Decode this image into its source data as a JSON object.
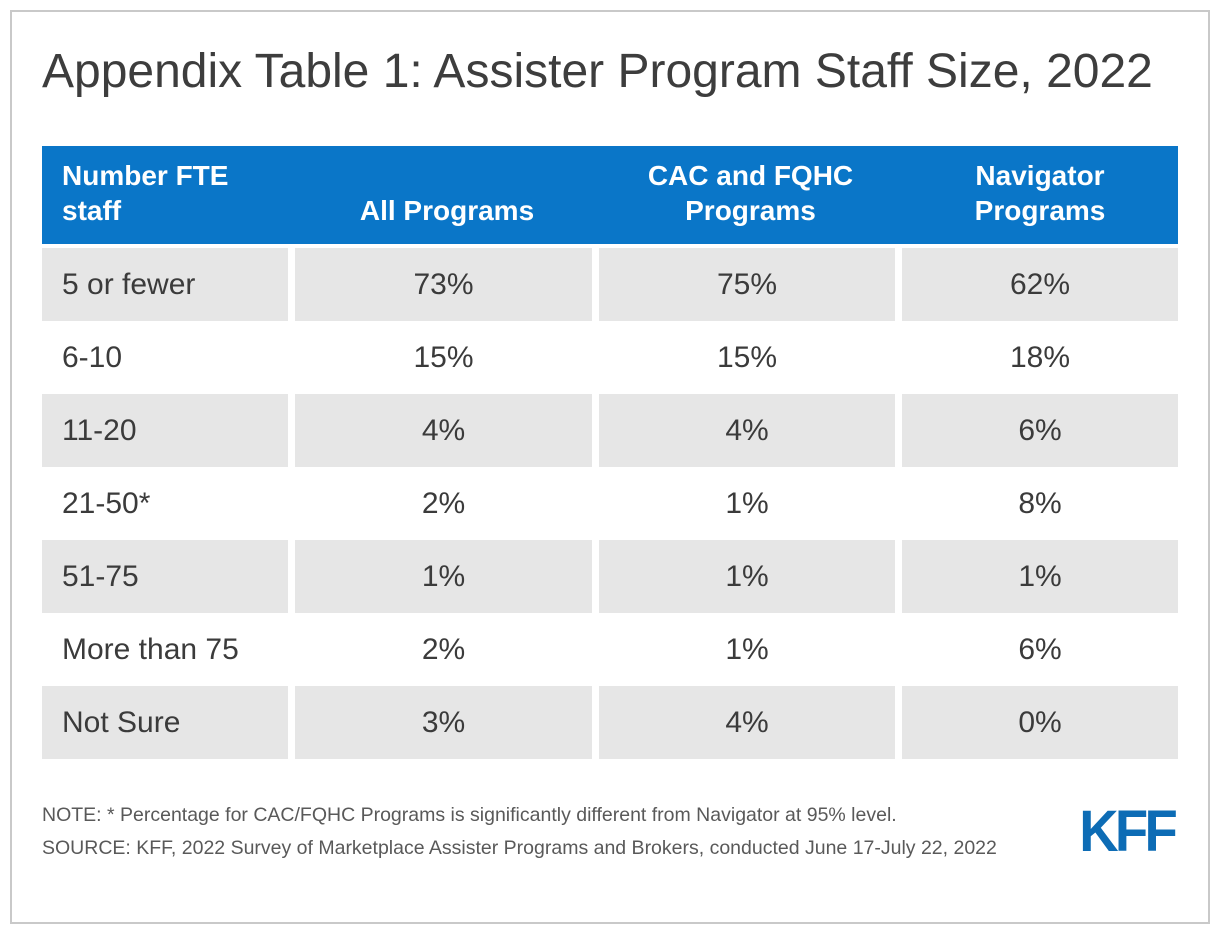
{
  "title": "Appendix Table 1: Assister Program Staff Size, 2022",
  "table": {
    "columns": [
      "Number FTE\nstaff",
      "All Programs",
      "CAC and FQHC\nPrograms",
      "Navigator\nPrograms"
    ],
    "rows": [
      [
        "5 or fewer",
        "73%",
        "75%",
        "62%"
      ],
      [
        "6-10",
        "15%",
        "15%",
        "18%"
      ],
      [
        "11-20",
        "4%",
        "4%",
        "6%"
      ],
      [
        "21-50*",
        "2%",
        "1%",
        "8%"
      ],
      [
        "51-75",
        "1%",
        "1%",
        "1%"
      ],
      [
        "More than 75",
        "2%",
        "1%",
        "6%"
      ],
      [
        "Not Sure",
        "3%",
        "4%",
        "0%"
      ]
    ]
  },
  "chart_data": {
    "type": "table",
    "title": "Appendix Table 1: Assister Program Staff Size, 2022",
    "categories": [
      "5 or fewer",
      "6-10",
      "11-20",
      "21-50*",
      "51-75",
      "More than 75",
      "Not Sure"
    ],
    "series": [
      {
        "name": "All Programs",
        "values": [
          73,
          15,
          4,
          2,
          1,
          2,
          3
        ]
      },
      {
        "name": "CAC and FQHC Programs",
        "values": [
          75,
          15,
          4,
          1,
          1,
          1,
          4
        ]
      },
      {
        "name": "Navigator Programs",
        "values": [
          62,
          18,
          6,
          8,
          1,
          6,
          0
        ]
      }
    ],
    "unit": "%",
    "row_label_header": "Number FTE staff",
    "note": "* Percentage for CAC/FQHC Programs is significantly different from Navigator at 95% level."
  },
  "footer": {
    "note": "NOTE: * Percentage for CAC/FQHC Programs is significantly different from Navigator at 95% level.",
    "source": "SOURCE: KFF, 2022 Survey of Marketplace Assister Programs and Brokers, conducted June 17-July 22, 2022",
    "logo_text": "KFF"
  },
  "colors": {
    "header_bg": "#0a76c8",
    "alt_row_bg": "#e6e6e6",
    "body_text": "#3b3b3b",
    "title_text": "#3d3d3d",
    "footer_text": "#595959",
    "logo_blue": "#0d6cb5",
    "frame_border": "#c9c9c9"
  }
}
